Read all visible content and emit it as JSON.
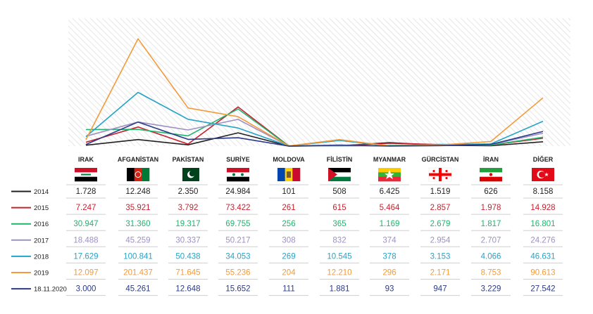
{
  "chart_data": {
    "type": "line",
    "categories": [
      "IRAK",
      "AFGANİSTAN",
      "PAKİSTAN",
      "SURİYE",
      "MOLDOVA",
      "FİLİSTİN",
      "MYANMAR",
      "GÜRCİSTAN",
      "İRAN",
      "DİĞER"
    ],
    "category_values": [
      [
        "1.728",
        "12.248",
        "2.350",
        "24.984",
        "101",
        "508",
        "6.425",
        "1.519",
        "626",
        "8.158"
      ],
      [
        "7.247",
        "35.921",
        "3.792",
        "73.422",
        "261",
        "615",
        "5.464",
        "2.857",
        "1.978",
        "14.928"
      ],
      [
        "30.947",
        "31.360",
        "19.317",
        "69.755",
        "256",
        "365",
        "1.169",
        "2.679",
        "1.817",
        "16.801"
      ],
      [
        "18.488",
        "45.259",
        "30.337",
        "50.217",
        "308",
        "832",
        "374",
        "2.954",
        "2.707",
        "24.276"
      ],
      [
        "17.629",
        "100.841",
        "50.438",
        "34.053",
        "269",
        "10.545",
        "378",
        "3.153",
        "4.066",
        "46.631"
      ],
      [
        "12.097",
        "201.437",
        "71.645",
        "55.236",
        "204",
        "12.210",
        "296",
        "2.171",
        "8.753",
        "90.613"
      ],
      [
        "3.000",
        "45.261",
        "12.648",
        "15.652",
        "111",
        "1.881",
        "93",
        "947",
        "3.229",
        "27.542"
      ]
    ],
    "series": [
      {
        "name": "2014",
        "color": "#231f20",
        "values": [
          1728,
          12248,
          2350,
          24984,
          101,
          508,
          6425,
          1519,
          626,
          8158
        ]
      },
      {
        "name": "2015",
        "color": "#c8202f",
        "values": [
          7247,
          35921,
          3792,
          73422,
          261,
          615,
          5464,
          2857,
          1978,
          14928
        ]
      },
      {
        "name": "2016",
        "color": "#1fb56c",
        "values": [
          30947,
          31360,
          19317,
          69755,
          256,
          365,
          1169,
          2679,
          1817,
          16801
        ]
      },
      {
        "name": "2017",
        "color": "#9e90c4",
        "values": [
          18488,
          45259,
          30337,
          50217,
          308,
          832,
          374,
          2954,
          2707,
          24276
        ]
      },
      {
        "name": "2018",
        "color": "#27a3c6",
        "values": [
          17629,
          100841,
          50438,
          34053,
          269,
          10545,
          378,
          3153,
          4066,
          46631
        ]
      },
      {
        "name": "2019",
        "color": "#f29b3a",
        "values": [
          12097,
          201437,
          71645,
          55236,
          204,
          12210,
          296,
          2171,
          8753,
          90613
        ]
      },
      {
        "name": "18.11.2020",
        "color": "#2b3a86",
        "values": [
          3000,
          45261,
          12648,
          15652,
          111,
          1881,
          93,
          947,
          3229,
          27542
        ]
      }
    ],
    "ylim": [
      0,
      240000
    ],
    "grid": "diagonal hatch background",
    "legend": "left rows"
  }
}
